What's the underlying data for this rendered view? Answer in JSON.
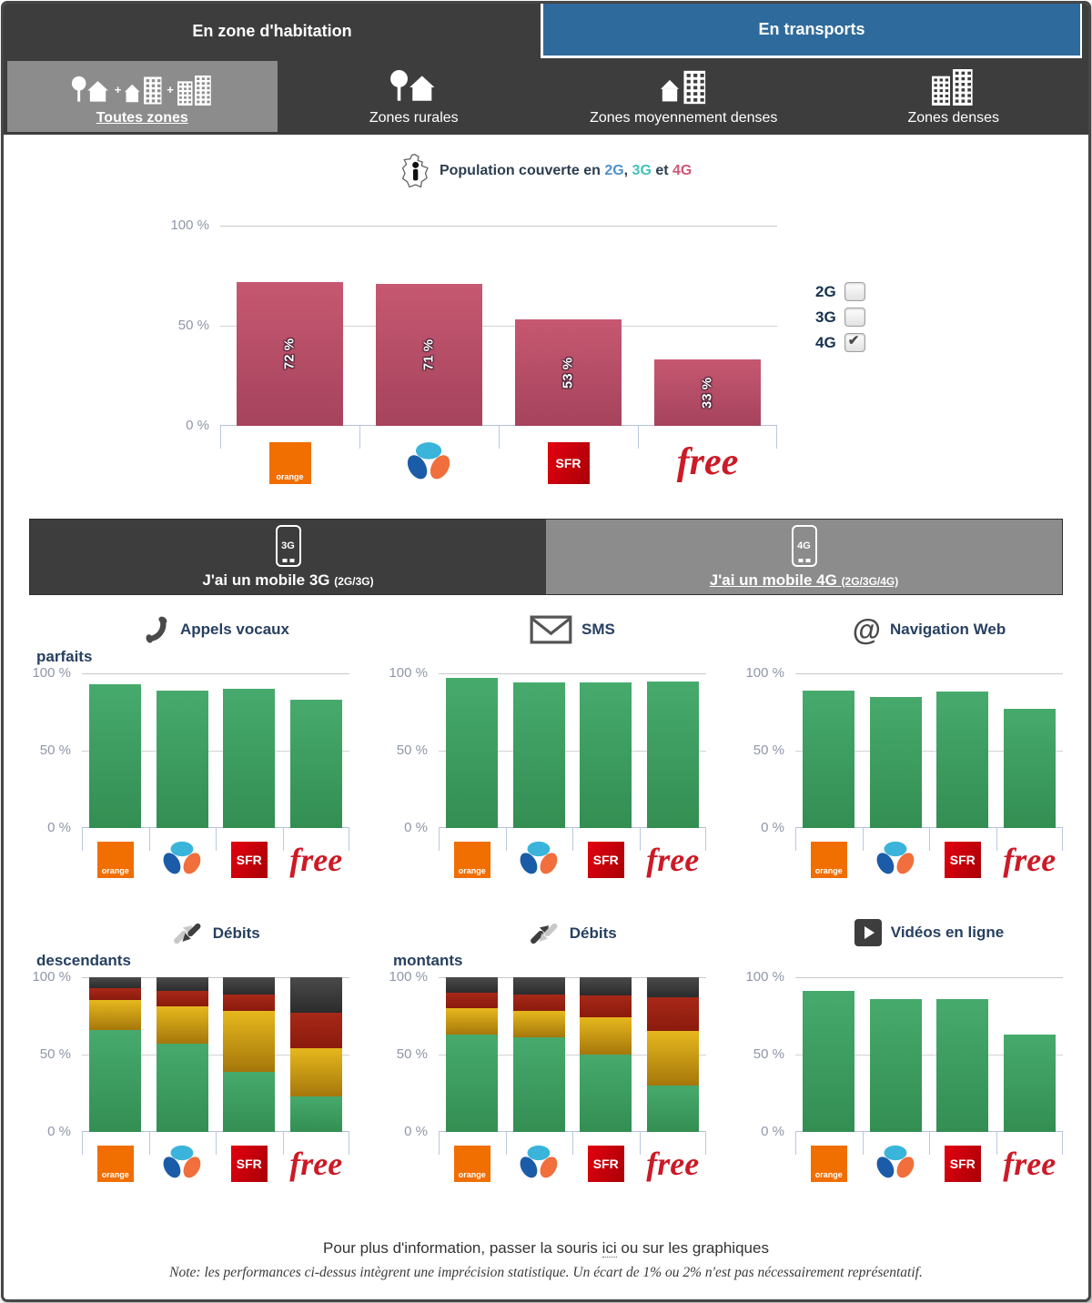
{
  "ui": {
    "main_tabs": [
      {
        "label": "En zone d'habitation",
        "active": true
      },
      {
        "label": "En transports",
        "active": false
      }
    ],
    "zone_tabs": [
      {
        "label": "Toutes zones",
        "selected": true
      },
      {
        "label": "Zones rurales",
        "selected": false
      },
      {
        "label": "Zones moyennement denses",
        "selected": false
      },
      {
        "label": "Zones denses",
        "selected": false
      }
    ],
    "glyphs": {
      "plus": "+",
      "at": "@",
      "check": "✔"
    },
    "coverage_title": {
      "prefix": "Population couverte en ",
      "g2": "2G",
      "comma": ", ",
      "g3": "3G",
      "et": " et ",
      "g4": "4G"
    },
    "coverage_legend": [
      {
        "label": "2G",
        "checked": false
      },
      {
        "label": "3G",
        "checked": false
      },
      {
        "label": "4G",
        "checked": true
      }
    ],
    "mobile_tabs": [
      {
        "label": "J'ai un mobile 3G",
        "detail": "(2G/3G)",
        "badge": "3G",
        "selected": false
      },
      {
        "label": "J'ai un mobile 4G",
        "detail": "(2G/3G/4G)",
        "badge": "4G",
        "selected": true
      }
    ],
    "chart_titles": [
      {
        "line1": "Appels vocaux",
        "line2": "parfaits"
      },
      {
        "line1": "SMS",
        "line2": ""
      },
      {
        "line1": "Navigation Web",
        "line2": ""
      },
      {
        "line1": "Débits",
        "line2": "descendants"
      },
      {
        "line1": "Débits",
        "line2": "montants"
      },
      {
        "line1": "Vidéos en ligne",
        "line2": ""
      }
    ],
    "ytick_labels": [
      "100 %",
      "50 %",
      "0 %"
    ],
    "operators": [
      {
        "id": "orange",
        "label": "orange"
      },
      {
        "id": "bouygues",
        "label": ""
      },
      {
        "id": "sfr",
        "label": "SFR"
      },
      {
        "id": "free",
        "label": "free"
      }
    ],
    "footer": {
      "info_prefix": "Pour plus d'information, passer la souris ",
      "info_link": "ici",
      "info_suffix": " ou sur les graphiques",
      "note": "Note: les performances ci-dessus intègrent une imprécision statistique. Un écart de 1% ou 2% n'est pas nécessairement représentatif."
    },
    "colors": {
      "header_dark": "#3d3d3d",
      "tab_blue": "#2e6a9b",
      "selected_gray": "#8c8c8c",
      "bar_pink": "#b94a64",
      "bar_green": "#3aa161",
      "seg_jaune": "#d9a30f",
      "seg_rouge": "#9c2212",
      "seg_gris": "#3a3a3a",
      "logo_orange": "#f16e00",
      "logo_sfr": "#e3000f",
      "logo_free": "#cc1a27",
      "title_2g": "#5191c8",
      "title_3g": "#43c1bd",
      "title_4g": "#cf5677"
    }
  },
  "chart_data": [
    {
      "id": "coverage",
      "type": "bar",
      "title": "Population couverte en 2G, 3G et 4G",
      "categories": [
        "Orange",
        "Bouygues Telecom",
        "SFR",
        "Free"
      ],
      "values": [
        72,
        71,
        53,
        33
      ],
      "bar_labels": [
        "72 %",
        "71 %",
        "53 %",
        "33 %"
      ],
      "unit": "%",
      "ylim": [
        0,
        100
      ],
      "yticks": [
        0,
        50,
        100
      ],
      "legend": [
        "2G",
        "3G",
        "4G"
      ],
      "series_shown": "4G",
      "legend_position": "right",
      "grid": true
    },
    {
      "id": "appels",
      "type": "bar",
      "title": "Appels vocaux parfaits",
      "categories": [
        "Orange",
        "Bouygues Telecom",
        "SFR",
        "Free"
      ],
      "values": [
        93,
        89,
        90,
        83
      ],
      "unit": "%",
      "ylim": [
        0,
        100
      ],
      "yticks": [
        0,
        50,
        100
      ],
      "grid": true
    },
    {
      "id": "sms",
      "type": "bar",
      "title": "SMS",
      "categories": [
        "Orange",
        "Bouygues Telecom",
        "SFR",
        "Free"
      ],
      "values": [
        97,
        94,
        94,
        95
      ],
      "unit": "%",
      "ylim": [
        0,
        100
      ],
      "yticks": [
        0,
        50,
        100
      ],
      "grid": true
    },
    {
      "id": "web",
      "type": "bar",
      "title": "Navigation Web",
      "categories": [
        "Orange",
        "Bouygues Telecom",
        "SFR",
        "Free"
      ],
      "values": [
        89,
        85,
        88,
        77
      ],
      "unit": "%",
      "ylim": [
        0,
        100
      ],
      "yticks": [
        0,
        50,
        100
      ],
      "grid": true
    },
    {
      "id": "down",
      "type": "stacked-bar",
      "title": "Débits descendants",
      "categories": [
        "Orange",
        "Bouygues Telecom",
        "SFR",
        "Free"
      ],
      "series": [
        {
          "name": "vert",
          "color": "#3aa161",
          "values": [
            66,
            57,
            39,
            23
          ]
        },
        {
          "name": "jaune",
          "color": "#d9a30f",
          "values": [
            19,
            24,
            39,
            31
          ]
        },
        {
          "name": "rouge",
          "color": "#9c2212",
          "values": [
            8,
            10,
            11,
            23
          ]
        },
        {
          "name": "gris",
          "color": "#3a3a3a",
          "values": [
            7,
            9,
            11,
            23
          ]
        }
      ],
      "unit": "%",
      "ylim": [
        0,
        100
      ],
      "yticks": [
        0,
        50,
        100
      ],
      "grid": true
    },
    {
      "id": "up",
      "type": "stacked-bar",
      "title": "Débits montants",
      "categories": [
        "Orange",
        "Bouygues Telecom",
        "SFR",
        "Free"
      ],
      "series": [
        {
          "name": "vert",
          "color": "#3aa161",
          "values": [
            63,
            61,
            50,
            30
          ]
        },
        {
          "name": "jaune",
          "color": "#d9a30f",
          "values": [
            17,
            17,
            24,
            35
          ]
        },
        {
          "name": "rouge",
          "color": "#9c2212",
          "values": [
            10,
            11,
            14,
            22
          ]
        },
        {
          "name": "gris",
          "color": "#3a3a3a",
          "values": [
            10,
            11,
            12,
            13
          ]
        }
      ],
      "unit": "%",
      "ylim": [
        0,
        100
      ],
      "yticks": [
        0,
        50,
        100
      ],
      "grid": true
    },
    {
      "id": "videos",
      "type": "bar",
      "title": "Vidéos en ligne",
      "categories": [
        "Orange",
        "Bouygues Telecom",
        "SFR",
        "Free"
      ],
      "values": [
        91,
        86,
        86,
        63
      ],
      "unit": "%",
      "ylim": [
        0,
        100
      ],
      "yticks": [
        0,
        50,
        100
      ],
      "grid": true
    }
  ]
}
